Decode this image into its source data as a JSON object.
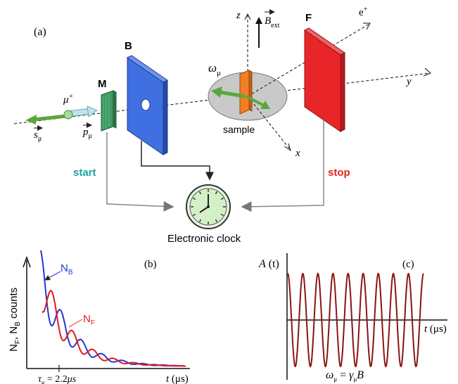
{
  "panels": {
    "a": "(a)",
    "b": "(b)",
    "c": "(c)"
  },
  "labels": {
    "M": "M",
    "B": "B",
    "F": "F",
    "muon": "μ",
    "muon_sup": "+",
    "positron": "e",
    "positron_sup": "+",
    "s_mu": "s",
    "s_mu_sub": "μ",
    "p_mu": "p",
    "p_mu_sub": "μ",
    "omega": "ω",
    "omega_sub": "μ",
    "sample": "sample",
    "z": "z",
    "y": "y",
    "x": "x",
    "b_ext": "B",
    "b_ext_sub": "ext",
    "start": "start",
    "stop": "stop",
    "clock": "Electronic clock"
  },
  "colors": {
    "blue_plate": "#3f6fe0",
    "red_plate": "#e8262a",
    "green_detector": "#3e9b62",
    "sample_orange": "#f07f25",
    "start_teal": "#21a3a3",
    "stop_red": "#e2231a",
    "n_b_curve": "#2438d0",
    "n_f_curve": "#e01a20",
    "a_t_curve": "#8a1414"
  },
  "panel_b": {
    "ylabel": "N",
    "ylabel_sub1": "F",
    "ylabel_sep": ", N",
    "ylabel_sub2": "B",
    "ylabel_tail": " counts",
    "nb": "N",
    "nb_sub": "B",
    "nf": "N",
    "nf_sub": "F",
    "tau": "τ",
    "tau_sub": "μ",
    "tau_value": " = 2.2",
    "tau_unit": "μs",
    "xlabel_var": "t",
    "xlabel_unit": " (μs)"
  },
  "panel_c": {
    "ylabel": "A",
    "ylabel_arg": " (t)",
    "xlabel_var": "t",
    "xlabel_unit": " (μs)",
    "eq_omega": "ω",
    "eq_omega_sub": "μ",
    "eq_mid": " = ",
    "eq_gamma": "γ",
    "eq_gamma_sub": "μ",
    "eq_b": "B"
  },
  "chart_data": [
    {
      "type": "line",
      "panel": "b",
      "series": [
        {
          "name": "N_B",
          "model": "decay_minus_osc"
        },
        {
          "name": "N_F",
          "model": "decay_plus_osc"
        }
      ],
      "tau_mu": 2.2
    },
    {
      "type": "line",
      "panel": "c",
      "series": [
        {
          "name": "",
          "model": "cosine",
          "periods": 9
        }
      ]
    }
  ]
}
